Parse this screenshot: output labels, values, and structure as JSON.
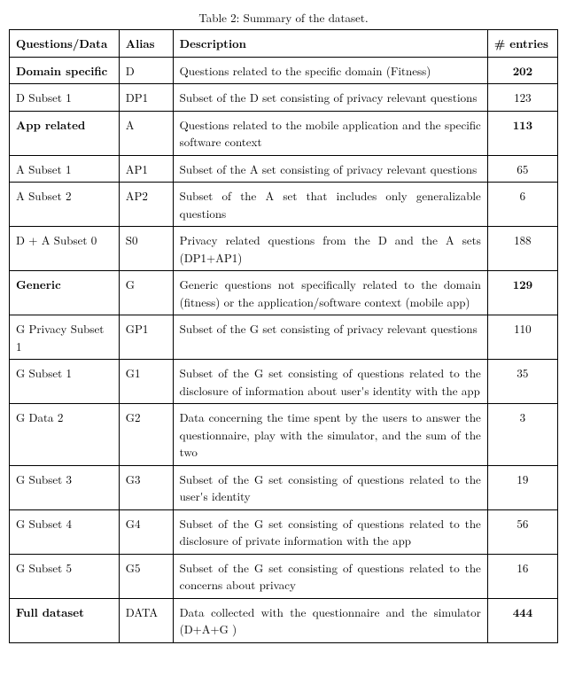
{
  "caption": "Table 2: Summary of the dataset.",
  "headers": {
    "questions": "Questions/Data",
    "alias": "Alias",
    "description": "Description",
    "entries": "# entries"
  },
  "rows": [
    {
      "q": "Domain specific",
      "q_bold": true,
      "alias": "D",
      "desc": "Questions related to the specific domain (Fitness)",
      "entries": "202",
      "e_bold": true
    },
    {
      "q": "D Subset 1",
      "q_bold": false,
      "alias": "DP1",
      "desc": "Subset of the D set consisting of privacy relevant questions",
      "entries": "123",
      "e_bold": false
    },
    {
      "q": "App related",
      "q_bold": true,
      "alias": "A",
      "desc": "Questions related to the mobile application and the specific software context",
      "entries": "113",
      "e_bold": true
    },
    {
      "q": "A Subset 1",
      "q_bold": false,
      "alias": "AP1",
      "desc": "Subset of the A set consisting of privacy relevant questions",
      "entries": "65",
      "e_bold": false
    },
    {
      "q": "A Subset 2",
      "q_bold": false,
      "alias": "AP2",
      "desc": "Subset of the A set that includes only generalizable questions",
      "entries": "6",
      "e_bold": false
    },
    {
      "q": "D + A Subset 0",
      "q_bold": false,
      "alias": "S0",
      "desc": "Privacy related questions from the D and the A sets (DP1+AP1)",
      "entries": "188",
      "e_bold": false
    },
    {
      "q": "Generic",
      "q_bold": true,
      "alias": "G",
      "desc": "Generic questions not specifically related to the domain (fitness) or the application/software context (mobile app)",
      "entries": "129",
      "e_bold": true
    },
    {
      "q": "G Privacy Subset 1",
      "q_bold": false,
      "alias": "GP1",
      "desc": "Subset of the G set consisting of privacy relevant questions",
      "entries": "110",
      "e_bold": false
    },
    {
      "q": "G Subset 1",
      "q_bold": false,
      "alias": "G1",
      "desc": "Subset of the G set consisting of questions related to the disclosure of information about user's identity with the app",
      "entries": "35",
      "e_bold": false
    },
    {
      "q": "G Data 2",
      "q_bold": false,
      "alias": "G2",
      "desc": "Data concerning the time spent by the users to answer the questionnaire, play with the simulator, and the sum of the two",
      "entries": "3",
      "e_bold": false
    },
    {
      "q": "G Subset 3",
      "q_bold": false,
      "alias": "G3",
      "desc": "Subset of the G set consisting of questions related to the user's identity",
      "entries": "19",
      "e_bold": false
    },
    {
      "q": "G Subset 4",
      "q_bold": false,
      "alias": "G4",
      "desc": "Subset of the G set consisting of questions related to the disclosure of private information with the app",
      "entries": "56",
      "e_bold": false
    },
    {
      "q": "G Subset 5",
      "q_bold": false,
      "alias": "G5",
      "desc": "Subset of the G set consisting of questions related to the concerns about privacy",
      "entries": "16",
      "e_bold": false
    },
    {
      "q": "Full dataset",
      "q_bold": true,
      "alias": "DATA",
      "desc": "Data collected with the questionnaire and the simulator (D+A+G )",
      "entries": "444",
      "e_bold": true
    }
  ]
}
